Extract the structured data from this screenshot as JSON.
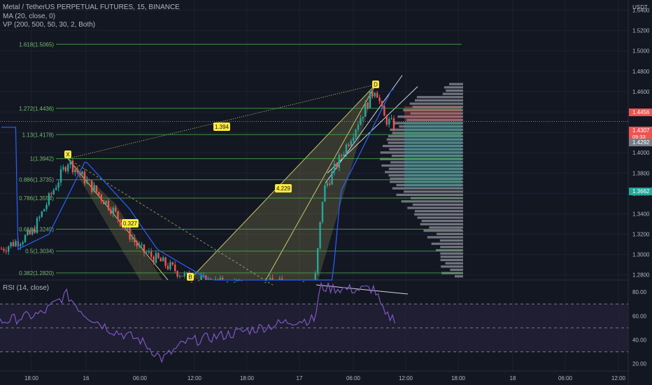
{
  "header": {
    "symbol_line": "Metal / TetherUS PERPETUAL FUTURES, 15, BINANCE",
    "ma_line": "MA (20, close, 0)",
    "vp_line": "VP (200, 500, 50, 30, 2, Both)",
    "rsi_line": "RSI (14, close)"
  },
  "colors": {
    "background": "#131722",
    "grid": "#1e2230",
    "fib_line": "#4caf50",
    "fib_text": "#73bb6f",
    "pattern_fill": "#c9c56a",
    "ma_line": "#2962ff",
    "candle_up": "#26a69a",
    "candle_down": "#ef5350",
    "volume_profile": "#9598a1",
    "rsi_line": "#7e57c2",
    "rsi_band": "#2a2540",
    "label_bg": "#ffeb3b"
  },
  "chart_data": {
    "type": "candlestick",
    "currency": "USDT",
    "ylim": [
      1.275,
      1.55
    ],
    "price_ticks": [
      "1.5400",
      "1.5200",
      "1.5000",
      "1.4800",
      "1.4600",
      "1.4400",
      "1.4200",
      "1.4000",
      "1.3800",
      "1.3600",
      "1.3400",
      "1.3200",
      "1.3000",
      "1.2800"
    ],
    "price_tick_values": [
      1.54,
      1.52,
      1.5,
      1.48,
      1.46,
      1.44,
      1.42,
      1.4,
      1.38,
      1.36,
      1.34,
      1.32,
      1.3,
      1.28
    ],
    "time_ticks": [
      "18:00",
      "16",
      "06:00",
      "12:00",
      "18:00",
      "17",
      "06:00",
      "12:00",
      "18:00",
      "18",
      "06:00",
      "12:00"
    ],
    "price_badges": [
      {
        "label": "1.4456",
        "value": 1.4456,
        "color": "#ef5350"
      },
      {
        "label": "1.4307",
        "value": 1.4307,
        "color": "#ef5350",
        "sub": "09:33"
      },
      {
        "label": "1.4292",
        "value": 1.4292,
        "color": "#787b86"
      },
      {
        "label": "1.3662",
        "value": 1.3662,
        "color": "#26a69a"
      }
    ],
    "fib_levels": [
      {
        "label": "1.618(1.5065)",
        "value": 1.5065
      },
      {
        "label": "1.272(1.4436)",
        "value": 1.4436
      },
      {
        "label": "1.13(1.4178)",
        "value": 1.4178
      },
      {
        "label": "1(1.3942)",
        "value": 1.3942
      },
      {
        "label": "0.886(1.3735)",
        "value": 1.3735
      },
      {
        "label": "0.786(1.3554)",
        "value": 1.3554
      },
      {
        "label": "0.618(1.3249)",
        "value": 1.3249
      },
      {
        "label": "0.5(1.3034)",
        "value": 1.3034
      },
      {
        "label": "0.382(1.2820)",
        "value": 1.282
      }
    ],
    "pattern_points": [
      {
        "label": "X",
        "t": 0.105,
        "price": 1.3942
      },
      {
        "label": "B",
        "t": 0.29,
        "price": 1.276
      },
      {
        "label": "D",
        "t": 0.575,
        "price": 1.467
      }
    ],
    "pattern_ratios": [
      {
        "label": "1.394",
        "t": 0.34,
        "price": 1.4307
      },
      {
        "label": "0.327",
        "t": 0.2,
        "price": 1.34
      },
      {
        "label": "4.229",
        "t": 0.435,
        "price": 1.366
      }
    ],
    "rsi_ticks": [
      "80.00",
      "60.00",
      "40.00",
      "20.00"
    ],
    "rsi_tick_values": [
      80,
      60,
      40,
      20
    ],
    "rsi_ylim": [
      14,
      90
    ],
    "rsi_band": [
      30,
      70
    ]
  }
}
